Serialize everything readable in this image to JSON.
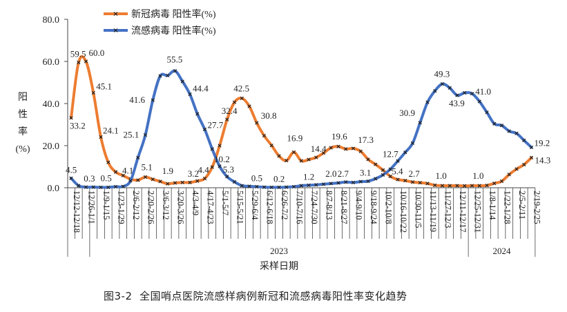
{
  "caption": "图3-2  全国哨点医院流感样病例新冠和流感病毒阳性率变化趋势",
  "chart_data": {
    "type": "line",
    "title": "",
    "xlabel": "采样日期",
    "ylabel": "阳性率(%)",
    "ylabel_chars": [
      "阳",
      "性",
      "率",
      "(%)"
    ],
    "ylim": [
      0,
      80
    ],
    "yticks": [
      "0.0",
      "20.0",
      "40.0",
      "60.0",
      "80.0"
    ],
    "grid": false,
    "legend_position": "top-left",
    "x_tick_labels": [
      "12/12-12/18",
      "12/26-1/1",
      "1/9-1/15",
      "1/23-1/29",
      "2/6-2/12",
      "2/20-2/26",
      "3/6-3/12",
      "3/20-3/26",
      "4/3-4/9",
      "4/17-4/23",
      "5/1-5/7",
      "5/15-5/21",
      "5/29-6/4",
      "6/12-6/18",
      "6/26-7/2",
      "7/10-7/16",
      "7/24-7/30",
      "8/7-8/13",
      "8/21-8/27",
      "9/4-9/10",
      "9/18-9/24",
      "10/2-10/8",
      "10/16-10/22",
      "10/30-11/5",
      "11/13-11/19",
      "11/27-12/3",
      "12/11-12/17",
      "12/25-12/31",
      "1/8-1/14",
      "1/22-1/28",
      "2/5-2/11",
      "2/19-2/25"
    ],
    "year_groups": [
      "2023",
      "2024"
    ],
    "series": [
      {
        "name": "新冠病毒 阳性率(%)",
        "color": "#ED7D31",
        "values": [
          33.2,
          59.5,
          60.0,
          45.1,
          24.1,
          12.1,
          7.5,
          5.8,
          4.1,
          3.6,
          5.1,
          4.0,
          3.0,
          1.9,
          2.3,
          2.5,
          2.5,
          3.2,
          4.4,
          9.8,
          20.0,
          32.4,
          40.6,
          42.5,
          38.7,
          30.8,
          24.7,
          20.1,
          15.1,
          12.9,
          16.9,
          12.8,
          13.4,
          14.4,
          16.5,
          19.0,
          19.6,
          18.4,
          18.7,
          17.3,
          13.5,
          11.1,
          8.4,
          5.4,
          3.9,
          3.4,
          2.7,
          2.4,
          2.0,
          1.2,
          1.0,
          1.0,
          1.0,
          0.9,
          1.0,
          1.0,
          1.1,
          2.1,
          3.1,
          6.3,
          8.9,
          11.0,
          14.3
        ],
        "labels": [
          {
            "i": 0,
            "text": "33.2"
          },
          {
            "i": 1,
            "text": "59.5"
          },
          {
            "i": 2,
            "text": "60.0"
          },
          {
            "i": 3,
            "text": "45.1"
          },
          {
            "i": 4,
            "text": "24.1"
          },
          {
            "i": 8,
            "text": "4.1"
          },
          {
            "i": 10,
            "text": "5.1"
          },
          {
            "i": 13,
            "text": "1.9"
          },
          {
            "i": 17,
            "text": "3.2"
          },
          {
            "i": 18,
            "text": "4.4"
          },
          {
            "i": 21,
            "text": "32.4"
          },
          {
            "i": 23,
            "text": "42.5"
          },
          {
            "i": 25,
            "text": "30.8"
          },
          {
            "i": 30,
            "text": "16.9"
          },
          {
            "i": 33,
            "text": "14.4"
          },
          {
            "i": 36,
            "text": "19.6"
          },
          {
            "i": 39,
            "text": "17.3"
          },
          {
            "i": 43,
            "text": "5.4"
          },
          {
            "i": 46,
            "text": "2.7"
          },
          {
            "i": 50,
            "text": "1.0"
          },
          {
            "i": 55,
            "text": "1.0"
          },
          {
            "i": 62,
            "text": "14.3"
          }
        ]
      },
      {
        "name": "流感病毒 阳性率(%)",
        "color": "#4472C4",
        "values": [
          4.5,
          1.0,
          0.3,
          0.3,
          0.2,
          0.2,
          0.5,
          0.6,
          3.3,
          14.3,
          25.1,
          41.6,
          53.1,
          53.3,
          55.5,
          50.5,
          44.4,
          35.1,
          27.7,
          18.4,
          10.2,
          5.3,
          2.8,
          1.0,
          0.7,
          0.5,
          0.3,
          0.2,
          0.2,
          0.3,
          0.5,
          1.0,
          1.2,
          1.4,
          1.7,
          2.0,
          2.3,
          2.7,
          2.5,
          2.9,
          3.1,
          4.3,
          6.1,
          8.8,
          12.7,
          16.8,
          21.2,
          30.9,
          40.6,
          46.0,
          49.3,
          47.4,
          43.9,
          45.1,
          44.7,
          41.0,
          35.8,
          30.4,
          29.6,
          26.9,
          25.8,
          22.5,
          19.2
        ],
        "labels": [
          {
            "i": 0,
            "text": "4.5"
          },
          {
            "i": 3,
            "text": "0.3"
          },
          {
            "i": 6,
            "text": "0.5"
          },
          {
            "i": 10,
            "text": "25.1"
          },
          {
            "i": 11,
            "text": "41.6"
          },
          {
            "i": 14,
            "text": "55.5"
          },
          {
            "i": 16,
            "text": "44.4"
          },
          {
            "i": 18,
            "text": "27.7"
          },
          {
            "i": 20,
            "text": "10.2"
          },
          {
            "i": 21,
            "text": "5.3"
          },
          {
            "i": 25,
            "text": "0.5"
          },
          {
            "i": 28,
            "text": "0.2"
          },
          {
            "i": 32,
            "text": "1.2"
          },
          {
            "i": 35,
            "text": "2.0"
          },
          {
            "i": 37,
            "text": "2.7"
          },
          {
            "i": 40,
            "text": "3.1"
          },
          {
            "i": 44,
            "text": "12.7"
          },
          {
            "i": 47,
            "text": "30.9"
          },
          {
            "i": 50,
            "text": "49.3"
          },
          {
            "i": 52,
            "text": "43.9"
          },
          {
            "i": 55,
            "text": "41.0"
          },
          {
            "i": 62,
            "text": "19.2"
          }
        ]
      }
    ]
  }
}
